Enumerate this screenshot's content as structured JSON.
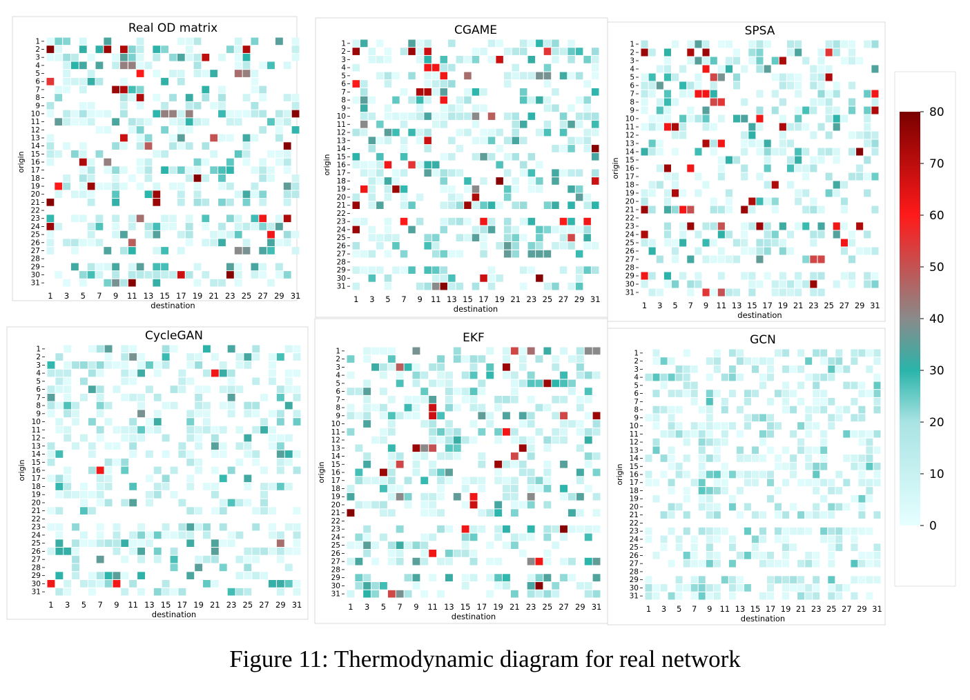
{
  "figure": {
    "caption": "Figure 11: Thermodynamic diagram for real network"
  },
  "colorbar": {
    "ticks": [
      0,
      10,
      20,
      30,
      40,
      50,
      60,
      70,
      80
    ],
    "min": 0,
    "max": 80,
    "colors": [
      "#e6ffff",
      "#a9e3e3",
      "#2ab4aa",
      "#8a8a8a",
      "#ff1a1a",
      "#7a0000"
    ]
  },
  "chart_data": [
    {
      "type": "heatmap",
      "title": "Real OD matrix",
      "xlabel": "destination",
      "ylabel": "origin",
      "rows": 31,
      "cols": 31,
      "x_tick_labels": [
        "1",
        "3",
        "5",
        "7",
        "9",
        "11",
        "13",
        "15",
        "17",
        "19",
        "21",
        "23",
        "25",
        "27",
        "29",
        "31"
      ],
      "y_tick_labels": [
        "1",
        "2",
        "3",
        "4",
        "5",
        "6",
        "7",
        "8",
        "9",
        "10",
        "11",
        "12",
        "13",
        "14",
        "15",
        "16",
        "17",
        "18",
        "19",
        "20",
        "21",
        "22",
        "23",
        "24",
        "25",
        "26",
        "27",
        "28",
        "29",
        "30",
        "31"
      ],
      "highlight_cells": [
        [
          2,
          1,
          78
        ],
        [
          2,
          8,
          75
        ],
        [
          2,
          10,
          72
        ],
        [
          2,
          25,
          72
        ],
        [
          3,
          20,
          70
        ],
        [
          4,
          10,
          42
        ],
        [
          4,
          11,
          42
        ],
        [
          5,
          12,
          60
        ],
        [
          5,
          24,
          45
        ],
        [
          5,
          25,
          42
        ],
        [
          6,
          1,
          55
        ],
        [
          7,
          9,
          75
        ],
        [
          7,
          10,
          72
        ],
        [
          8,
          12,
          72
        ],
        [
          10,
          15,
          42
        ],
        [
          10,
          16,
          42
        ],
        [
          10,
          18,
          42
        ],
        [
          10,
          31,
          78
        ],
        [
          13,
          10,
          68
        ],
        [
          13,
          21,
          50
        ],
        [
          14,
          13,
          48
        ],
        [
          14,
          30,
          78
        ],
        [
          16,
          5,
          72
        ],
        [
          16,
          8,
          42
        ],
        [
          18,
          19,
          78
        ],
        [
          19,
          2,
          60
        ],
        [
          19,
          6,
          75
        ],
        [
          20,
          14,
          75
        ],
        [
          21,
          1,
          78
        ],
        [
          21,
          14,
          75
        ],
        [
          23,
          12,
          45
        ],
        [
          23,
          27,
          62
        ],
        [
          23,
          30,
          72
        ],
        [
          24,
          1,
          75
        ],
        [
          25,
          28,
          62
        ],
        [
          26,
          11,
          48
        ],
        [
          27,
          24,
          40
        ],
        [
          27,
          25,
          38
        ],
        [
          30,
          17,
          68
        ],
        [
          30,
          23,
          78
        ],
        [
          31,
          9,
          38
        ],
        [
          31,
          11,
          78
        ]
      ],
      "value_range": [
        0,
        80
      ]
    },
    {
      "type": "heatmap",
      "title": "CGAME",
      "xlabel": "destination",
      "ylabel": "origin",
      "rows": 31,
      "cols": 31,
      "x_tick_labels": [
        "1",
        "3",
        "5",
        "7",
        "9",
        "11",
        "13",
        "15",
        "17",
        "19",
        "21",
        "23",
        "25",
        "27",
        "29",
        "31"
      ],
      "y_tick_labels": [
        "1",
        "2",
        "3",
        "4",
        "5",
        "6",
        "7",
        "8",
        "9",
        "10",
        "11",
        "12",
        "13",
        "14",
        "15",
        "16",
        "17",
        "18",
        "19",
        "20",
        "21",
        "22",
        "23",
        "24",
        "25",
        "26",
        "27",
        "28",
        "29",
        "30",
        "31"
      ],
      "highlight_cells": [
        [
          2,
          1,
          75
        ],
        [
          2,
          8,
          75
        ],
        [
          2,
          10,
          68
        ],
        [
          2,
          25,
          55
        ],
        [
          3,
          19,
          68
        ],
        [
          4,
          10,
          62
        ],
        [
          4,
          11,
          62
        ],
        [
          5,
          12,
          62
        ],
        [
          5,
          15,
          45
        ],
        [
          5,
          24,
          38
        ],
        [
          5,
          25,
          38
        ],
        [
          6,
          1,
          60
        ],
        [
          7,
          9,
          72
        ],
        [
          7,
          10,
          72
        ],
        [
          8,
          12,
          62
        ],
        [
          10,
          16,
          40
        ],
        [
          10,
          18,
          48
        ],
        [
          11,
          2,
          40
        ],
        [
          13,
          10,
          68
        ],
        [
          14,
          31,
          78
        ],
        [
          16,
          5,
          62
        ],
        [
          16,
          8,
          55
        ],
        [
          18,
          19,
          78
        ],
        [
          18,
          31,
          68
        ],
        [
          19,
          2,
          62
        ],
        [
          19,
          6,
          75
        ],
        [
          19,
          16,
          40
        ],
        [
          20,
          16,
          72
        ],
        [
          21,
          1,
          75
        ],
        [
          21,
          15,
          75
        ],
        [
          23,
          7,
          60
        ],
        [
          23,
          17,
          62
        ],
        [
          23,
          27,
          60
        ],
        [
          23,
          30,
          62
        ],
        [
          24,
          1,
          75
        ],
        [
          25,
          28,
          52
        ],
        [
          27,
          24,
          35
        ],
        [
          27,
          25,
          35
        ],
        [
          30,
          17,
          68
        ],
        [
          30,
          24,
          78
        ],
        [
          31,
          11,
          40
        ],
        [
          31,
          12,
          78
        ]
      ],
      "value_range": [
        0,
        80
      ]
    },
    {
      "type": "heatmap",
      "title": "SPSA",
      "xlabel": "destination",
      "ylabel": "origin",
      "rows": 31,
      "cols": 31,
      "x_tick_labels": [
        "1",
        "3",
        "5",
        "7",
        "9",
        "11",
        "13",
        "15",
        "17",
        "19",
        "21",
        "23",
        "25",
        "27",
        "29",
        "31"
      ],
      "y_tick_labels": [
        "1",
        "2",
        "3",
        "4",
        "5",
        "6",
        "7",
        "8",
        "9",
        "10",
        "11",
        "12",
        "13",
        "14",
        "15",
        "16",
        "17",
        "18",
        "19",
        "20",
        "21",
        "22",
        "23",
        "24",
        "25",
        "26",
        "27",
        "28",
        "29",
        "30",
        "31"
      ],
      "highlight_cells": [
        [
          2,
          1,
          75
        ],
        [
          2,
          7,
          72
        ],
        [
          2,
          9,
          75
        ],
        [
          2,
          25,
          55
        ],
        [
          3,
          19,
          72
        ],
        [
          4,
          9,
          62
        ],
        [
          5,
          10,
          52
        ],
        [
          5,
          11,
          38
        ],
        [
          5,
          25,
          72
        ],
        [
          7,
          8,
          62
        ],
        [
          7,
          9,
          62
        ],
        [
          7,
          31,
          62
        ],
        [
          8,
          10,
          52
        ],
        [
          8,
          11,
          55
        ],
        [
          9,
          31,
          72
        ],
        [
          10,
          16,
          62
        ],
        [
          11,
          4,
          62
        ],
        [
          11,
          5,
          72
        ],
        [
          11,
          19,
          72
        ],
        [
          13,
          9,
          72
        ],
        [
          13,
          11,
          62
        ],
        [
          14,
          29,
          78
        ],
        [
          16,
          4,
          75
        ],
        [
          16,
          7,
          62
        ],
        [
          18,
          18,
          72
        ],
        [
          19,
          5,
          72
        ],
        [
          20,
          15,
          72
        ],
        [
          21,
          1,
          75
        ],
        [
          21,
          6,
          62
        ],
        [
          21,
          7,
          50
        ],
        [
          21,
          14,
          75
        ],
        [
          23,
          7,
          75
        ],
        [
          23,
          11,
          50
        ],
        [
          23,
          16,
          75
        ],
        [
          23,
          26,
          62
        ],
        [
          23,
          29,
          72
        ],
        [
          24,
          1,
          72
        ],
        [
          25,
          27,
          62
        ],
        [
          27,
          23,
          52
        ],
        [
          27,
          24,
          52
        ],
        [
          29,
          1,
          62
        ],
        [
          30,
          23,
          75
        ],
        [
          31,
          9,
          55
        ],
        [
          31,
          11,
          50
        ]
      ],
      "value_range": [
        0,
        80
      ]
    },
    {
      "type": "heatmap",
      "title": "CycleGAN",
      "xlabel": "destination",
      "ylabel": "origin",
      "rows": 31,
      "cols": 31,
      "x_tick_labels": [
        "1",
        "3",
        "5",
        "7",
        "9",
        "11",
        "13",
        "15",
        "17",
        "19",
        "21",
        "23",
        "25",
        "27",
        "29",
        "31"
      ],
      "y_tick_labels": [
        "1",
        "2",
        "3",
        "4",
        "5",
        "6",
        "7",
        "8",
        "9",
        "10",
        "11",
        "12",
        "13",
        "14",
        "15",
        "16",
        "17",
        "18",
        "19",
        "20",
        "21",
        "22",
        "23",
        "24",
        "25",
        "26",
        "27",
        "28",
        "29",
        "30",
        "31"
      ],
      "highlight_cells": [
        [
          2,
          11,
          38
        ],
        [
          4,
          21,
          62
        ],
        [
          9,
          12,
          38
        ],
        [
          16,
          7,
          62
        ],
        [
          25,
          29,
          45
        ],
        [
          30,
          1,
          62
        ],
        [
          30,
          9,
          62
        ]
      ],
      "value_range": [
        0,
        80
      ]
    },
    {
      "type": "heatmap",
      "title": "EKF",
      "xlabel": "destination",
      "ylabel": "origin",
      "rows": 31,
      "cols": 31,
      "x_tick_labels": [
        "1",
        "3",
        "5",
        "7",
        "9",
        "11",
        "13",
        "15",
        "17",
        "19",
        "21",
        "23",
        "25",
        "27",
        "29",
        "31"
      ],
      "y_tick_labels": [
        "1",
        "2",
        "3",
        "4",
        "5",
        "6",
        "7",
        "8",
        "9",
        "10",
        "11",
        "12",
        "13",
        "14",
        "15",
        "16",
        "17",
        "18",
        "19",
        "20",
        "21",
        "22",
        "23",
        "24",
        "25",
        "26",
        "27",
        "28",
        "29",
        "30",
        "31"
      ],
      "highlight_cells": [
        [
          1,
          9,
          38
        ],
        [
          1,
          21,
          52
        ],
        [
          1,
          23,
          45
        ],
        [
          1,
          30,
          40
        ],
        [
          1,
          31,
          40
        ],
        [
          3,
          7,
          48
        ],
        [
          3,
          20,
          75
        ],
        [
          5,
          25,
          75
        ],
        [
          8,
          11,
          68
        ],
        [
          9,
          11,
          68
        ],
        [
          9,
          27,
          52
        ],
        [
          9,
          31,
          75
        ],
        [
          11,
          20,
          62
        ],
        [
          13,
          9,
          75
        ],
        [
          13,
          10,
          40
        ],
        [
          13,
          11,
          50
        ],
        [
          13,
          22,
          75
        ],
        [
          14,
          21,
          52
        ],
        [
          15,
          7,
          52
        ],
        [
          15,
          19,
          75
        ],
        [
          16,
          5,
          75
        ],
        [
          19,
          7,
          40
        ],
        [
          19,
          16,
          62
        ],
        [
          19,
          23,
          40
        ],
        [
          20,
          16,
          68
        ],
        [
          21,
          1,
          78
        ],
        [
          23,
          15,
          62
        ],
        [
          23,
          27,
          78
        ],
        [
          26,
          11,
          62
        ],
        [
          27,
          23,
          40
        ],
        [
          27,
          24,
          62
        ],
        [
          30,
          24,
          78
        ],
        [
          31,
          6,
          52
        ],
        [
          31,
          7,
          38
        ]
      ],
      "value_range": [
        0,
        80
      ]
    },
    {
      "type": "heatmap",
      "title": "GCN",
      "xlabel": "destination",
      "ylabel": "origin",
      "rows": 31,
      "cols": 31,
      "x_tick_labels": [
        "1",
        "3",
        "5",
        "7",
        "9",
        "11",
        "13",
        "15",
        "17",
        "19",
        "21",
        "23",
        "25",
        "27",
        "29",
        "31"
      ],
      "y_tick_labels": [
        "1",
        "2",
        "3",
        "4",
        "5",
        "6",
        "7",
        "8",
        "9",
        "10",
        "11",
        "12",
        "13",
        "14",
        "15",
        "16",
        "17",
        "18",
        "19",
        "20",
        "21",
        "22",
        "23",
        "24",
        "25",
        "26",
        "27",
        "28",
        "29",
        "30",
        "31"
      ],
      "highlight_cells": [],
      "value_range": [
        0,
        25
      ]
    }
  ]
}
